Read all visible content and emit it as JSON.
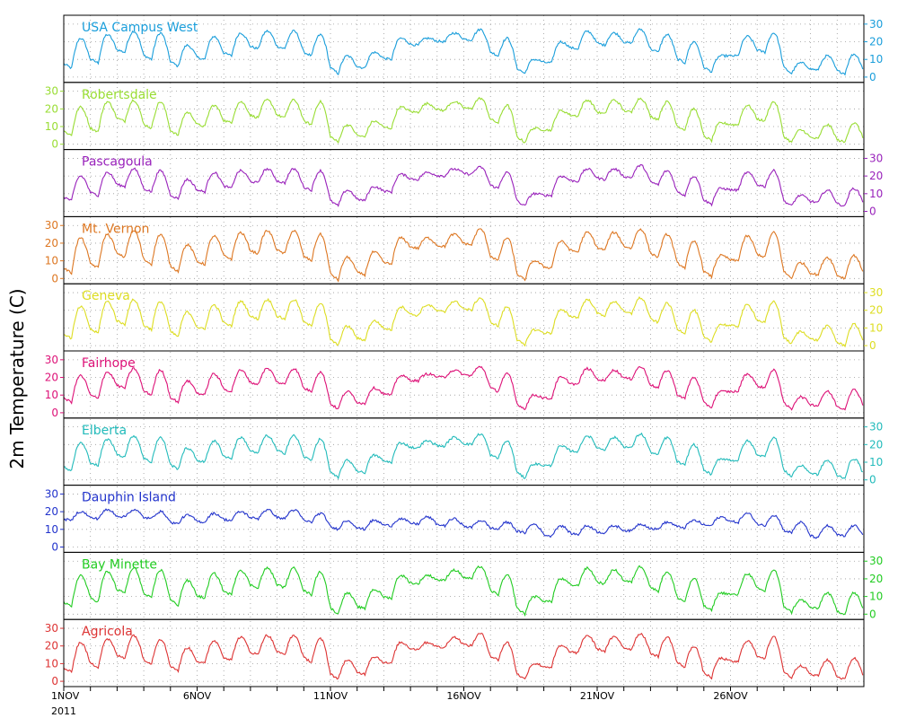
{
  "chart_data": {
    "type": "line",
    "ylabel": "2m Temperature (C)",
    "x_start": "1NOV 2011",
    "x_end_day": 30,
    "ylim": [
      -3,
      35
    ],
    "yticks": [
      0,
      10,
      20,
      30
    ],
    "x_tick_labels": [
      {
        "day": 1,
        "label": "1NOV"
      },
      {
        "day": 6,
        "label": "6NOV"
      },
      {
        "day": 11,
        "label": "11NOV"
      },
      {
        "day": 16,
        "label": "16NOV"
      },
      {
        "day": 21,
        "label": "21NOV"
      },
      {
        "day": 26,
        "label": "26NOV"
      }
    ],
    "year_label": "2011",
    "grid": true,
    "series": [
      {
        "name": "USA Campus West",
        "color": "#1a9edb",
        "axis_side": "right",
        "daily_max": [
          22,
          24,
          26,
          25,
          18,
          23,
          25,
          26,
          26,
          24,
          12,
          14,
          22,
          22,
          25,
          27,
          22,
          10,
          20,
          26,
          25,
          27,
          24,
          20,
          12,
          23,
          25,
          8,
          12,
          13
        ],
        "daily_min": [
          5,
          8,
          14,
          10,
          6,
          10,
          12,
          16,
          16,
          12,
          2,
          5,
          10,
          18,
          20,
          21,
          12,
          2,
          8,
          16,
          18,
          19,
          14,
          8,
          3,
          12,
          14,
          2,
          4,
          2
        ]
      },
      {
        "name": "Robertsdale",
        "color": "#99dd33",
        "axis_side": "left",
        "daily_max": [
          21,
          24,
          25,
          24,
          18,
          22,
          24,
          25,
          25,
          24,
          11,
          13,
          21,
          23,
          24,
          26,
          22,
          9,
          19,
          25,
          25,
          26,
          24,
          20,
          12,
          22,
          24,
          8,
          11,
          12
        ],
        "daily_min": [
          5,
          7,
          13,
          9,
          5,
          10,
          12,
          15,
          15,
          11,
          1,
          4,
          9,
          18,
          19,
          20,
          12,
          1,
          8,
          16,
          17,
          18,
          14,
          8,
          2,
          11,
          13,
          1,
          3,
          1
        ]
      },
      {
        "name": "Pascagoula",
        "color": "#9922bb",
        "axis_side": "right",
        "daily_max": [
          20,
          22,
          24,
          23,
          18,
          22,
          23,
          24,
          24,
          23,
          12,
          14,
          21,
          22,
          24,
          25,
          22,
          10,
          20,
          24,
          24,
          26,
          23,
          20,
          13,
          22,
          23,
          9,
          12,
          13
        ],
        "daily_min": [
          6,
          9,
          14,
          11,
          7,
          11,
          13,
          16,
          16,
          12,
          3,
          6,
          11,
          18,
          20,
          21,
          13,
          3,
          9,
          17,
          18,
          19,
          15,
          9,
          4,
          12,
          14,
          3,
          5,
          3
        ]
      },
      {
        "name": "Mt. Vernon",
        "color": "#dd7722",
        "axis_side": "left",
        "daily_max": [
          23,
          25,
          27,
          25,
          19,
          24,
          26,
          27,
          27,
          25,
          12,
          15,
          23,
          23,
          25,
          28,
          23,
          10,
          21,
          26,
          26,
          28,
          25,
          21,
          13,
          24,
          26,
          9,
          12,
          13
        ],
        "daily_min": [
          3,
          6,
          12,
          8,
          4,
          8,
          11,
          14,
          14,
          10,
          -1,
          2,
          8,
          17,
          18,
          19,
          10,
          -1,
          6,
          15,
          16,
          17,
          12,
          6,
          1,
          10,
          12,
          0,
          2,
          0
        ]
      },
      {
        "name": "Geneva",
        "color": "#dddd22",
        "axis_side": "right",
        "daily_max": [
          22,
          25,
          26,
          25,
          19,
          23,
          25,
          26,
          26,
          24,
          11,
          14,
          22,
          23,
          25,
          27,
          22,
          9,
          20,
          26,
          25,
          27,
          24,
          20,
          12,
          23,
          25,
          8,
          11,
          12
        ],
        "daily_min": [
          4,
          7,
          12,
          9,
          5,
          9,
          11,
          15,
          15,
          11,
          0,
          3,
          9,
          17,
          19,
          20,
          11,
          0,
          7,
          16,
          17,
          18,
          13,
          7,
          2,
          11,
          13,
          1,
          3,
          0
        ]
      },
      {
        "name": "Fairhope",
        "color": "#dd1177",
        "axis_side": "left",
        "daily_max": [
          21,
          23,
          25,
          24,
          18,
          22,
          24,
          25,
          25,
          23,
          12,
          14,
          21,
          22,
          24,
          26,
          22,
          10,
          20,
          25,
          24,
          26,
          24,
          20,
          12,
          22,
          24,
          9,
          12,
          13
        ],
        "daily_min": [
          6,
          8,
          14,
          10,
          6,
          10,
          12,
          16,
          16,
          12,
          2,
          5,
          10,
          18,
          20,
          21,
          12,
          2,
          8,
          16,
          18,
          19,
          14,
          8,
          3,
          12,
          14,
          2,
          4,
          2
        ]
      },
      {
        "name": "Elberta",
        "color": "#22bbbb",
        "axis_side": "right",
        "daily_max": [
          21,
          23,
          25,
          24,
          18,
          22,
          24,
          25,
          25,
          23,
          11,
          14,
          21,
          22,
          24,
          26,
          22,
          9,
          19,
          25,
          24,
          26,
          24,
          20,
          12,
          22,
          24,
          8,
          11,
          12
        ],
        "daily_min": [
          5,
          8,
          13,
          10,
          6,
          10,
          12,
          15,
          15,
          11,
          1,
          4,
          10,
          18,
          19,
          20,
          12,
          1,
          8,
          16,
          17,
          18,
          14,
          8,
          3,
          11,
          13,
          2,
          3,
          1
        ]
      },
      {
        "name": "Dauphin Island",
        "color": "#2233cc",
        "axis_side": "left",
        "daily_max": [
          20,
          21,
          21,
          20,
          18,
          19,
          20,
          21,
          21,
          19,
          15,
          15,
          16,
          17,
          16,
          15,
          14,
          13,
          12,
          12,
          12,
          13,
          14,
          15,
          17,
          19,
          18,
          14,
          12,
          12
        ],
        "daily_min": [
          15,
          16,
          17,
          16,
          13,
          14,
          15,
          16,
          16,
          14,
          10,
          10,
          12,
          13,
          12,
          11,
          10,
          8,
          6,
          7,
          8,
          9,
          10,
          11,
          12,
          14,
          12,
          8,
          5,
          6
        ]
      },
      {
        "name": "Bay Minette",
        "color": "#22cc22",
        "axis_side": "right",
        "daily_max": [
          22,
          24,
          26,
          25,
          19,
          23,
          25,
          26,
          26,
          24,
          12,
          14,
          22,
          22,
          25,
          27,
          22,
          10,
          20,
          26,
          25,
          27,
          24,
          20,
          12,
          23,
          25,
          8,
          12,
          12
        ],
        "daily_min": [
          4,
          7,
          12,
          9,
          5,
          9,
          11,
          15,
          15,
          11,
          0,
          3,
          9,
          17,
          19,
          20,
          11,
          0,
          7,
          16,
          17,
          18,
          13,
          7,
          2,
          11,
          13,
          1,
          3,
          0
        ]
      },
      {
        "name": "Agricola",
        "color": "#dd3333",
        "axis_side": "left",
        "daily_max": [
          22,
          24,
          26,
          24,
          19,
          23,
          25,
          26,
          26,
          24,
          12,
          14,
          22,
          22,
          25,
          27,
          22,
          10,
          20,
          26,
          25,
          27,
          25,
          20,
          13,
          23,
          25,
          9,
          12,
          13
        ],
        "daily_min": [
          5,
          8,
          13,
          10,
          6,
          10,
          12,
          15,
          15,
          11,
          1,
          4,
          10,
          18,
          19,
          20,
          12,
          1,
          8,
          16,
          17,
          18,
          14,
          8,
          2,
          11,
          13,
          2,
          3,
          1
        ]
      }
    ]
  }
}
